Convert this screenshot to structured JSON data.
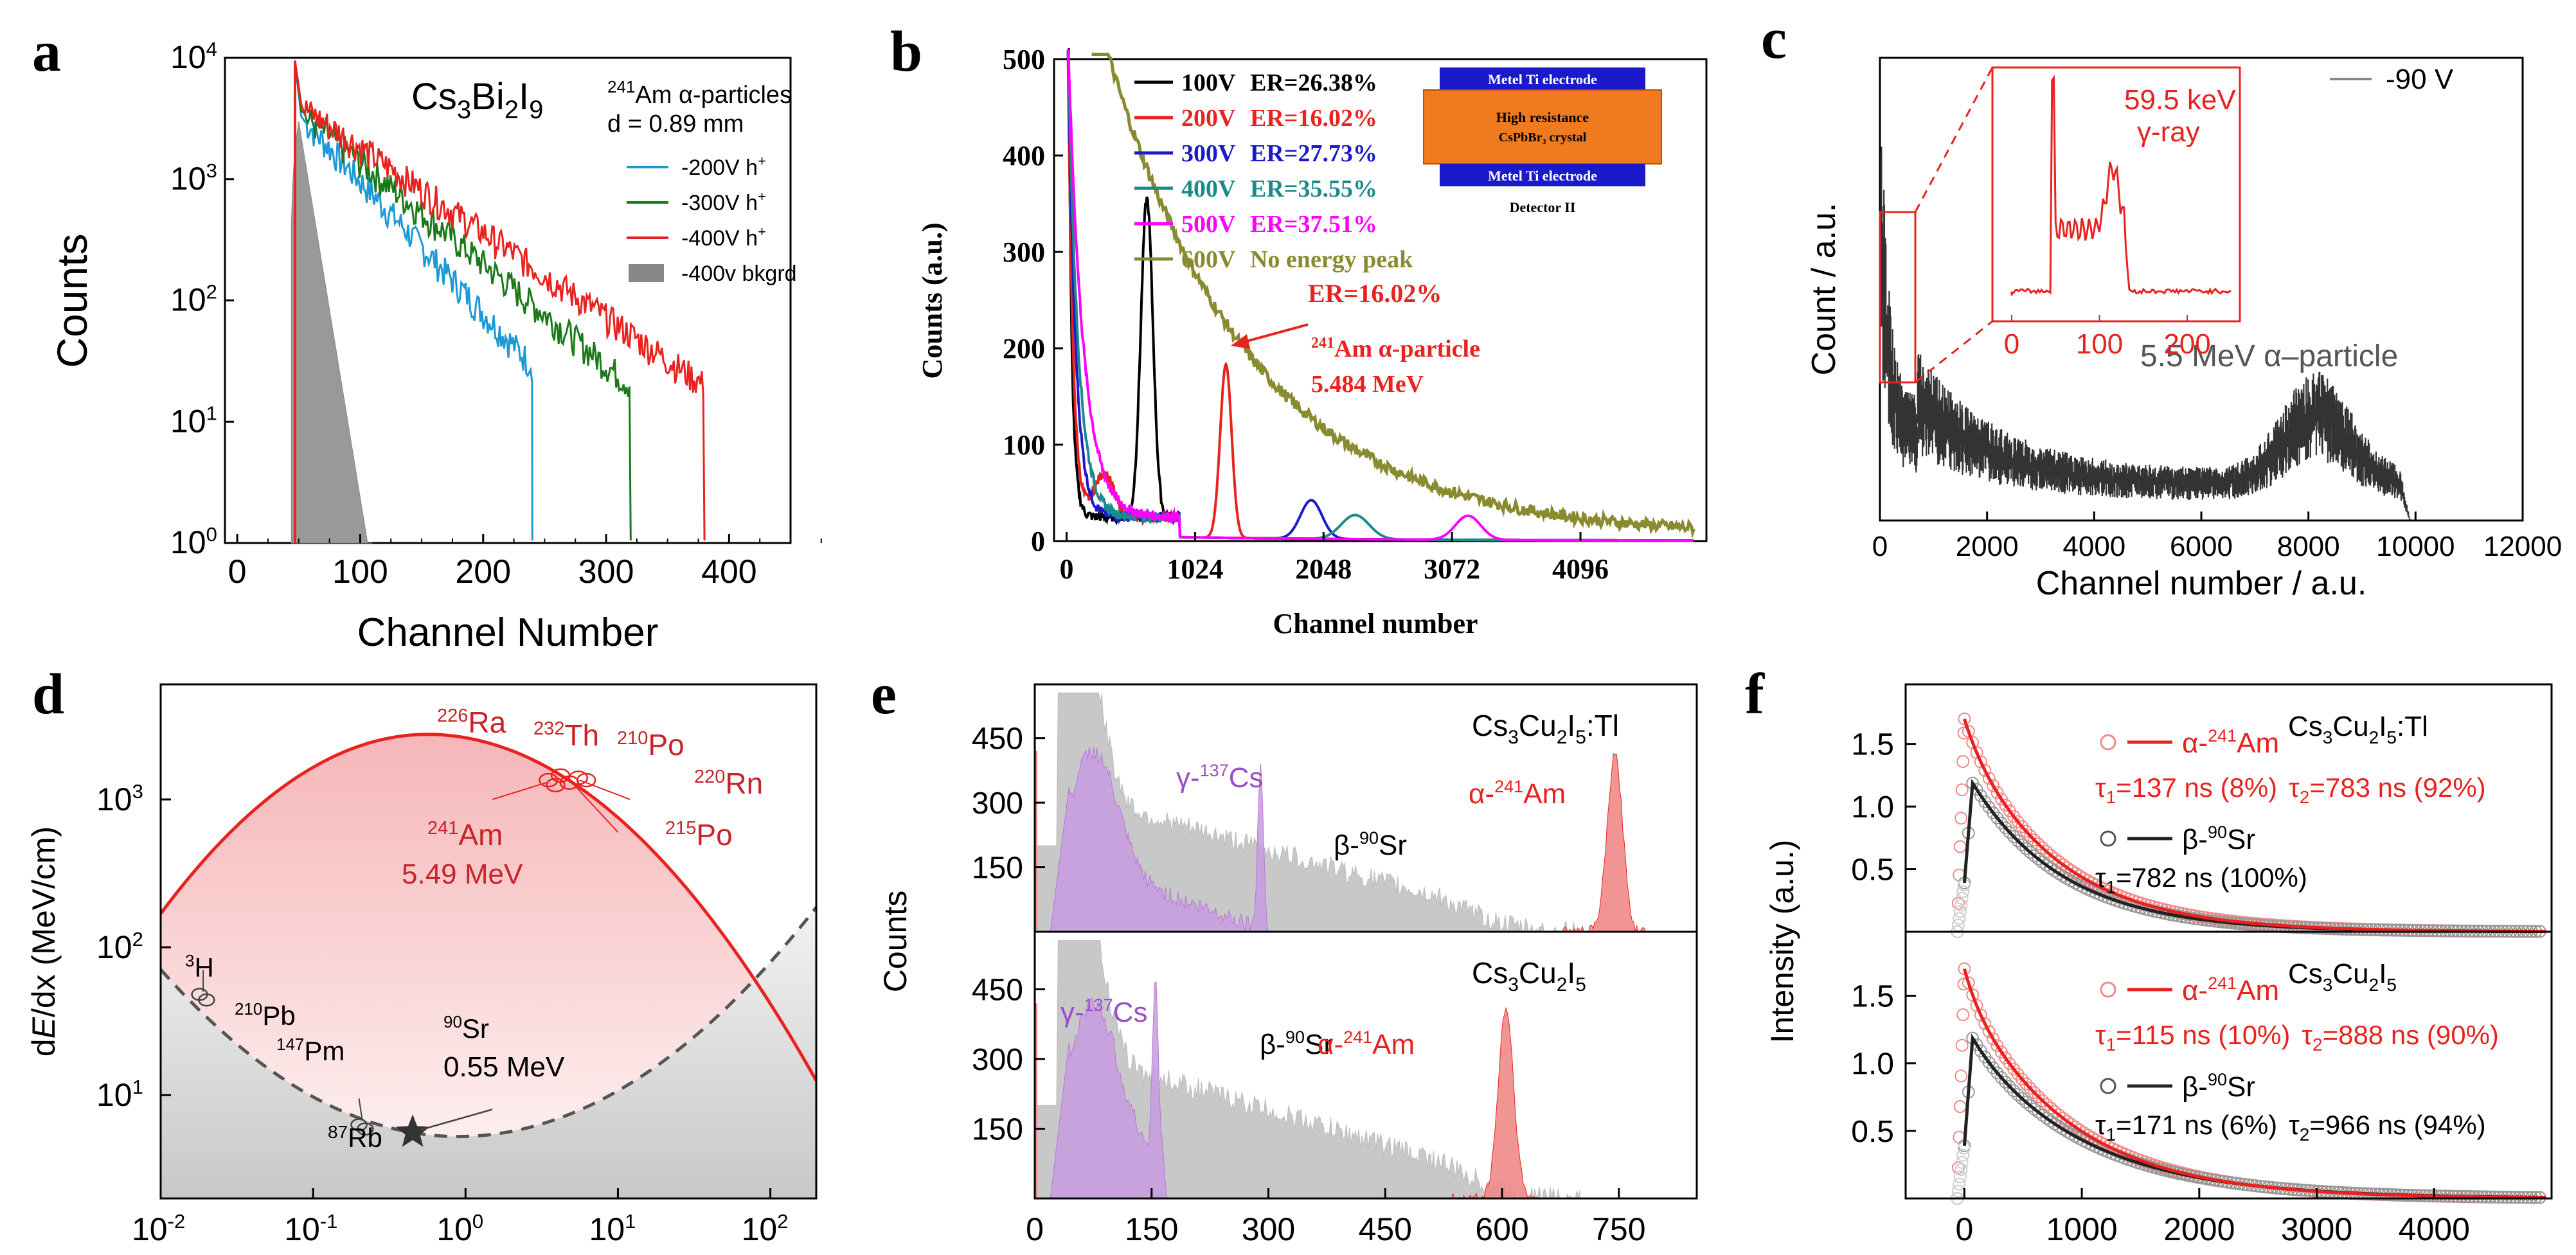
{
  "colors": {
    "red": "#e8231f",
    "green": "#1a7a1a",
    "blue": "#1a9ad6",
    "gray": "#888888",
    "purple": "#b479d6",
    "olive": "#8a8a30",
    "magenta": "#ff00ff",
    "teal": "#1a8a8a",
    "orange": "#f07a20",
    "navy": "#1a1acc"
  },
  "panels": {
    "a": "a",
    "b": "b",
    "c": "c",
    "d": "d",
    "e": "e",
    "f": "f"
  },
  "chart_data": [
    {
      "id": "a",
      "type": "line",
      "yscale": "log",
      "xlabel": "Channel Number",
      "ylabel": "Counts",
      "xlim": [
        -10,
        450
      ],
      "ylim": [
        1,
        10000
      ],
      "xticks": [
        "0",
        "100",
        "200",
        "300",
        "400"
      ],
      "yticks": [
        "10",
        "10",
        "10",
        "10",
        "10"
      ],
      "ytick_exp": [
        "0",
        "1",
        "2",
        "3",
        "4"
      ],
      "title": "Cs3Bi2I9",
      "title_sub": [
        "3",
        "2",
        "9"
      ],
      "note_line1": "Am α-particles",
      "note_mass": "241",
      "note_line2": "d = 0.89 mm",
      "legend": [
        {
          "label": "-200V h",
          "sup": "+",
          "color": "#1a9ad6"
        },
        {
          "label": "-300V h",
          "sup": "+",
          "color": "#1a7a1a"
        },
        {
          "label": "-400V h",
          "sup": "+",
          "color": "#e8231f"
        },
        {
          "label": "-400v bkgrd",
          "sup": "",
          "color": "#888888"
        }
      ],
      "series": [
        {
          "name": "-200V h+",
          "peak_x": 50,
          "peak_y": 9500,
          "start_y": 3000,
          "end_x": 240,
          "decay": 40
        },
        {
          "name": "-300V h+",
          "peak_x": 50,
          "peak_y": 9500,
          "start_y": 3300,
          "end_x": 320,
          "decay": 52
        },
        {
          "name": "-400V h+",
          "peak_x": 50,
          "peak_y": 9500,
          "start_y": 3800,
          "end_x": 380,
          "decay": 62
        },
        {
          "name": "-400v bkgrd",
          "peak_x": 50,
          "peak_y": 3000,
          "end_x": 110
        }
      ]
    },
    {
      "id": "b",
      "type": "line",
      "xlabel": "Channel number",
      "ylabel": "Counts (a.u.)",
      "xlim": [
        -100,
        5100
      ],
      "ylim": [
        0,
        500
      ],
      "xticks": [
        "0",
        "1024",
        "2048",
        "3072",
        "4096"
      ],
      "yticks": [
        "0",
        "100",
        "200",
        "300",
        "400",
        "500"
      ],
      "legend": [
        {
          "v": "100V",
          "er": "ER=26.38%",
          "color": "#000000"
        },
        {
          "v": "200V",
          "er": "ER=16.02%",
          "color": "#e8231f"
        },
        {
          "v": "300V",
          "er": "ER=27.73%",
          "color": "#1a1acc"
        },
        {
          "v": "400V",
          "er": "ER=35.55%",
          "color": "#1a8a8a"
        },
        {
          "v": "500V",
          "er": "ER=37.51%",
          "color": "#ff00ff"
        },
        {
          "v": "600V",
          "er": "No energy peak",
          "color": "#8a8a30"
        }
      ],
      "annotation": {
        "er": "ER=16.02%",
        "mass": "241",
        "line2": "Am α-particle",
        "line3": "5.484 MeV"
      },
      "inset": {
        "top": "Metel Ti electrode",
        "mid1": "High resistance",
        "mid2": "CsPbBr₃ crystal",
        "bottom": "Metel Ti electrode",
        "caption": "Detector II"
      },
      "peaks": [
        {
          "v": "100V",
          "x": 620,
          "y": 340
        },
        {
          "v": "200V",
          "x": 1270,
          "y": 200
        },
        {
          "v": "300V",
          "x": 2000,
          "y": 52
        },
        {
          "v": "400V",
          "x": 2300,
          "y": 35
        },
        {
          "v": "500V",
          "x": 3200,
          "y": 28
        }
      ]
    },
    {
      "id": "c",
      "type": "line",
      "xlabel": "Channel number / a.u.",
      "ylabel": "Count / a.u.",
      "xlim": [
        0,
        12000
      ],
      "xticks": [
        "0",
        "2000",
        "4000",
        "6000",
        "8000",
        "10000",
        "12000"
      ],
      "legend": "-90 V",
      "note": "5.5 MeV α–particle",
      "inset": {
        "xticks": [
          "0",
          "100",
          "200"
        ],
        "label1": "59.5 keV",
        "label2": "γ-ray",
        "peak_x": 115
      }
    },
    {
      "id": "d",
      "type": "line",
      "yscale": "log",
      "xscale": "log",
      "ylabel": "dE/dx (MeV/cm)",
      "xlim": [
        0.01,
        200
      ],
      "ylim": [
        2,
        6000
      ],
      "xticks": [
        "10",
        "10",
        "10",
        "10",
        "10"
      ],
      "xtick_exp": [
        "-2",
        "-1",
        "0",
        "1",
        "2"
      ],
      "yticks": [
        "10",
        "10",
        "10"
      ],
      "ytick_exp": [
        "1",
        "2",
        "3"
      ],
      "alpha_labels": [
        {
          "mass": "226",
          "el": "Ra"
        },
        {
          "mass": "232",
          "el": "Th"
        },
        {
          "mass": "210",
          "el": "Po"
        },
        {
          "mass": "220",
          "el": "Rn"
        },
        {
          "mass": "215",
          "el": "Po"
        },
        {
          "mass": "241",
          "el": "Am"
        }
      ],
      "alpha_energy": "5.49 MeV",
      "beta_labels": [
        {
          "mass": "3",
          "el": "H"
        },
        {
          "mass": "210",
          "el": "Pb"
        },
        {
          "mass": "147",
          "el": "Pm"
        },
        {
          "mass": "87",
          "el": "Rb"
        },
        {
          "mass": "90",
          "el": "Sr"
        }
      ],
      "beta_energy": "0.55 MeV"
    },
    {
      "id": "e",
      "type": "area",
      "ylabel": "Counts",
      "xlim": [
        0,
        850
      ],
      "xticks": [
        "0",
        "150",
        "300",
        "450",
        "600",
        "750"
      ],
      "yticks": [
        "150",
        "300",
        "450"
      ],
      "top": {
        "material": "Cs3Cu2I5:Tl",
        "labels": {
          "gamma": "γ-",
          "gamma_mass": "137",
          "gamma_el": "Cs",
          "beta": "β-",
          "beta_mass": "90",
          "beta_el": "Sr",
          "alpha": "α-",
          "alpha_mass": "241",
          "alpha_el": "Am"
        },
        "alpha_peak": 745
      },
      "bottom": {
        "material": "Cs3Cu2I5",
        "labels": {
          "gamma": "γ-",
          "gamma_mass": "137",
          "gamma_el": "Cs",
          "beta": "β-",
          "beta_mass": "90",
          "beta_el": "Sr",
          "alpha": "α-",
          "alpha_mass": "241",
          "alpha_el": "Am"
        },
        "alpha_peak": 605
      }
    },
    {
      "id": "f",
      "type": "scatter",
      "ylabel": "Intensity (a.u.)",
      "xlim": [
        -500,
        5000
      ],
      "xticks": [
        "0",
        "1000",
        "2000",
        "3000",
        "4000"
      ],
      "yticks": [
        "0.5",
        "1.0",
        "1.5"
      ],
      "top": {
        "material": "Cs3Cu2I5:Tl",
        "alpha": "α-",
        "alpha_mass": "241",
        "alpha_el": "Am",
        "tau_alpha": [
          "τ",
          "1",
          "=137 ns (8%)",
          "τ",
          "2",
          "=783 ns (92%)"
        ],
        "beta": "β-",
        "beta_mass": "90",
        "beta_el": "Sr",
        "tau_beta": [
          "τ",
          "1",
          "=782 ns (100%)"
        ]
      },
      "bottom": {
        "material": "Cs3Cu2I5",
        "alpha": "α-",
        "alpha_mass": "241",
        "alpha_el": "Am",
        "tau_alpha": [
          "τ",
          "1",
          "=115 ns (10%)",
          "τ",
          "2",
          "=888 ns (90%)"
        ],
        "beta": "β-",
        "beta_mass": "90",
        "beta_el": "Sr",
        "tau_beta": [
          "τ",
          "1",
          "=171 ns (6%)",
          "τ",
          "2",
          "=966 ns (94%)"
        ]
      }
    }
  ]
}
